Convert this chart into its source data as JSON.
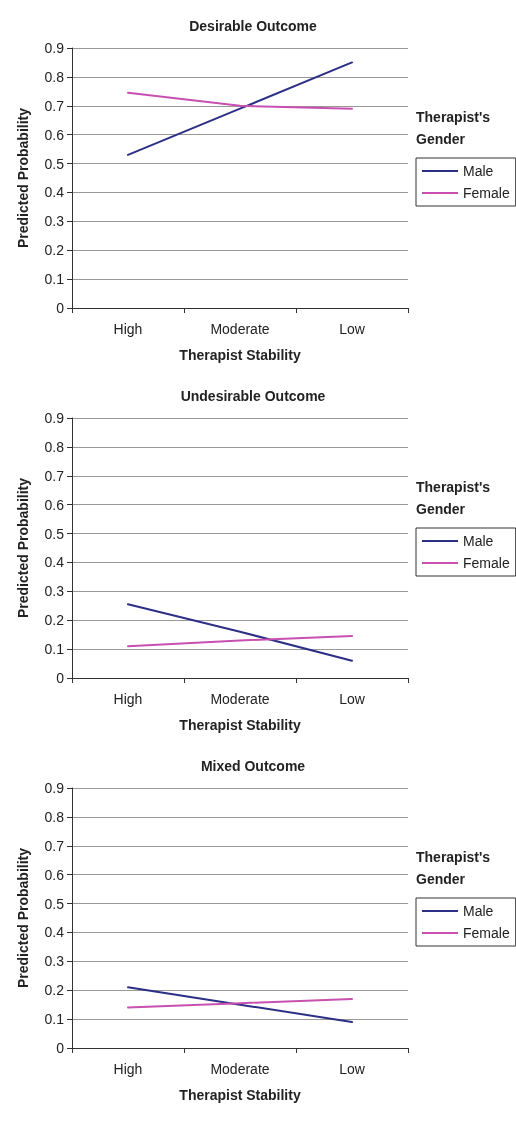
{
  "chart_data": [
    {
      "type": "line",
      "title": "Desirable Outcome",
      "xlabel": "Therapist Stability",
      "ylabel": "Predicted Probability",
      "legend_title": "Therapist's Gender",
      "categories": [
        "High",
        "Moderate",
        "Low"
      ],
      "series": [
        {
          "name": "Male",
          "color": "#2b2f86",
          "values": [
            0.53,
            0.69,
            0.85
          ]
        },
        {
          "name": "Female",
          "color": "#c850b0",
          "values": [
            0.745,
            0.7,
            0.69
          ]
        }
      ],
      "ylim": [
        0,
        0.9
      ],
      "yticks": [
        0,
        0.1,
        0.2,
        0.3,
        0.4,
        0.5,
        0.6,
        0.7,
        0.8,
        0.9
      ],
      "grid": "y",
      "legend": "right",
      "marker": "none",
      "line_style": "solid"
    },
    {
      "type": "line",
      "title": "Undesirable Outcome",
      "xlabel": "Therapist Stability",
      "ylabel": "Predicted Probability",
      "legend_title": "Therapist's Gender",
      "categories": [
        "High",
        "Moderate",
        "Low"
      ],
      "series": [
        {
          "name": "Male",
          "color": "#2b2f86",
          "values": [
            0.255,
            0.16,
            0.06
          ]
        },
        {
          "name": "Female",
          "color": "#c850b0",
          "values": [
            0.11,
            0.13,
            0.145
          ]
        }
      ],
      "ylim": [
        0,
        0.9
      ],
      "yticks": [
        0,
        0.1,
        0.2,
        0.3,
        0.4,
        0.5,
        0.6,
        0.7,
        0.8,
        0.9
      ],
      "grid": "y",
      "legend": "right",
      "marker": "none",
      "line_style": "solid"
    },
    {
      "type": "line",
      "title": "Mixed Outcome",
      "xlabel": "Therapist Stability",
      "ylabel": "Predicted Probability",
      "legend_title": "Therapist's Gender",
      "categories": [
        "High",
        "Moderate",
        "Low"
      ],
      "series": [
        {
          "name": "Male",
          "color": "#2b2f86",
          "values": [
            0.21,
            0.15,
            0.09
          ]
        },
        {
          "name": "Female",
          "color": "#c850b0",
          "values": [
            0.14,
            0.155,
            0.17
          ]
        }
      ],
      "ylim": [
        0,
        0.9
      ],
      "yticks": [
        0,
        0.1,
        0.2,
        0.3,
        0.4,
        0.5,
        0.6,
        0.7,
        0.8,
        0.9
      ],
      "grid": "y",
      "legend": "right",
      "marker": "none",
      "line_style": "solid"
    }
  ]
}
